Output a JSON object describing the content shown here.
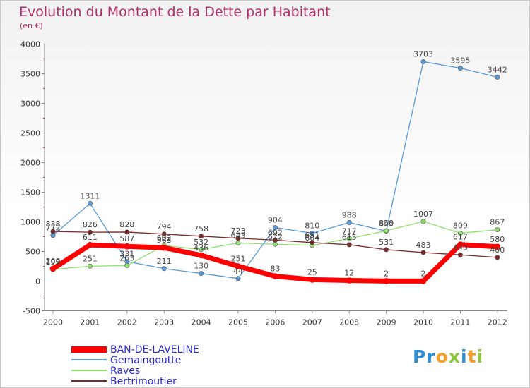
{
  "title": "Evolution du Montant de la Dette par Habitant",
  "subtitle": "(en €)",
  "logo": "Proxiti",
  "colors": {
    "title": "#b0306a",
    "BAN-DE-LAVELINE": "#ff0000",
    "Gemaingoutte": "#5b9bd5",
    "Raves": "#90e070",
    "Bertrimoutier": "#7a2a2a"
  },
  "chart_data": {
    "type": "line",
    "title": "Evolution du Montant de la Dette par Habitant",
    "ylabel": "(en €)",
    "x": [
      "2000",
      "2001",
      "2002",
      "2003",
      "2004",
      "2005",
      "2006",
      "2007",
      "2008",
      "2009",
      "2010",
      "2011",
      "2012"
    ],
    "ylim": [
      -500,
      4000
    ],
    "yticks": [
      -500,
      0,
      500,
      1000,
      1500,
      2000,
      2500,
      3000,
      3500,
      4000
    ],
    "grid": false,
    "legend": "bottom-left",
    "series": [
      {
        "name": "BAN-DE-LAVELINE",
        "values": [
          209,
          611,
          587,
          563,
          436,
          251,
          83,
          25,
          12,
          2,
          2,
          617,
          580
        ]
      },
      {
        "name": "Gemaingoutte",
        "values": [
          772,
          1311,
          331,
          211,
          130,
          44,
          904,
          810,
          988,
          845,
          3703,
          3595,
          3442
        ]
      },
      {
        "name": "Raves",
        "values": [
          199,
          251,
          263,
          602,
          532,
          643,
          622,
          604,
          717,
          850,
          1007,
          809,
          867
        ]
      },
      {
        "name": "Bertrimoutier",
        "values": [
          838,
          826,
          828,
          794,
          758,
          723,
          692,
          651,
          615,
          531,
          483,
          443,
          400
        ]
      }
    ]
  }
}
